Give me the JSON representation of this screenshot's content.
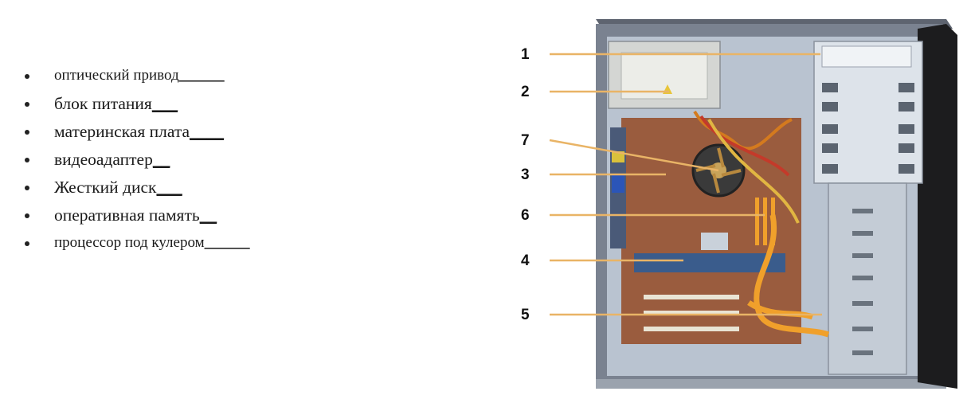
{
  "list": {
    "items": [
      {
        "label": "оптический привод",
        "blank": "______"
      },
      {
        "label": "блок питания",
        "blank": "___"
      },
      {
        "label": "материнская плата",
        "blank": "____"
      },
      {
        "label": "видеоадаптер",
        "blank": "__"
      },
      {
        "label": "Жесткий диск",
        "blank": "___"
      },
      {
        "label": "оперативная память",
        "blank": "__"
      },
      {
        "label": "процессор под кулером",
        "blank": "______"
      }
    ]
  },
  "figure": {
    "callouts": [
      "1",
      "2",
      "7",
      "3",
      "6",
      "4",
      "5"
    ],
    "colors": {
      "callout_line": "#e9b466",
      "case_frame": "#7a8290",
      "case_interior": "#b9c3d0",
      "motherboard": "#9a5c3e",
      "psu": "#d4d6d3",
      "front_bezel": "#1c1c1e",
      "cable_orange": "#f0a02b"
    }
  }
}
